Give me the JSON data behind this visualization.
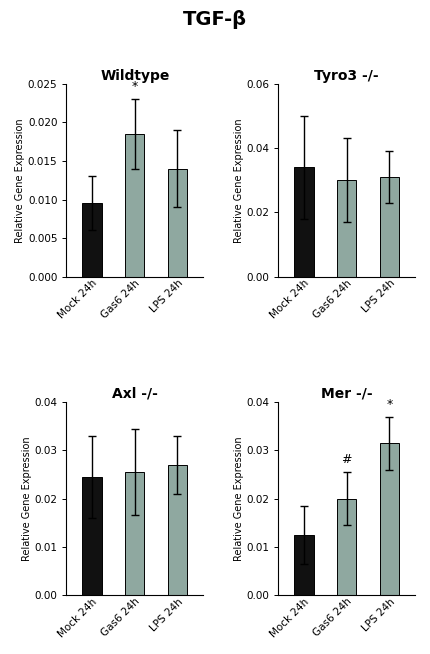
{
  "title": "TGF-β",
  "subplots": [
    {
      "title": "Wildtype",
      "categories": [
        "Mock 24h",
        "Gas6 24h",
        "LPS 24h"
      ],
      "values": [
        0.0095,
        0.0185,
        0.014
      ],
      "errors": [
        0.0035,
        0.0045,
        0.005
      ],
      "bar_colors": [
        "#111111",
        "#8fa8a0",
        "#8fa8a0"
      ],
      "ylim": [
        0,
        0.025
      ],
      "yticks": [
        0.0,
        0.005,
        0.01,
        0.015,
        0.02,
        0.025
      ],
      "yticklabels": [
        "0.000",
        "0.005",
        "0.010",
        "0.015",
        "0.020",
        "0.025"
      ],
      "ylabel": "Relative Gene Expression",
      "significance": [
        null,
        "*",
        null
      ]
    },
    {
      "title": "Tyro3 -/-",
      "categories": [
        "Mock 24h",
        "Gas6 24h",
        "LPS 24h"
      ],
      "values": [
        0.034,
        0.03,
        0.031
      ],
      "errors": [
        0.016,
        0.013,
        0.008
      ],
      "bar_colors": [
        "#111111",
        "#8fa8a0",
        "#8fa8a0"
      ],
      "ylim": [
        0,
        0.06
      ],
      "yticks": [
        0.0,
        0.02,
        0.04,
        0.06
      ],
      "yticklabels": [
        "0.00",
        "0.02",
        "0.04",
        "0.06"
      ],
      "ylabel": "Relative Gene Expression",
      "significance": [
        null,
        null,
        null
      ]
    },
    {
      "title": "Axl -/-",
      "categories": [
        "Mock 24h",
        "Gas6 24h",
        "LPS 24h"
      ],
      "values": [
        0.0245,
        0.0255,
        0.027
      ],
      "errors": [
        0.0085,
        0.009,
        0.006
      ],
      "bar_colors": [
        "#111111",
        "#8fa8a0",
        "#8fa8a0"
      ],
      "ylim": [
        0,
        0.04
      ],
      "yticks": [
        0.0,
        0.01,
        0.02,
        0.03,
        0.04
      ],
      "yticklabels": [
        "0.00",
        "0.01",
        "0.02",
        "0.03",
        "0.04"
      ],
      "ylabel": "Relative Gene Expression",
      "significance": [
        null,
        null,
        null
      ]
    },
    {
      "title": "Mer -/-",
      "categories": [
        "Mock 24h",
        "Gas6 24h",
        "LPS 24h"
      ],
      "values": [
        0.0125,
        0.02,
        0.0315
      ],
      "errors": [
        0.006,
        0.0055,
        0.0055
      ],
      "bar_colors": [
        "#111111",
        "#8fa8a0",
        "#8fa8a0"
      ],
      "ylim": [
        0,
        0.04
      ],
      "yticks": [
        0.0,
        0.01,
        0.02,
        0.03,
        0.04
      ],
      "yticklabels": [
        "0.00",
        "0.01",
        "0.02",
        "0.03",
        "0.04"
      ],
      "ylabel": "Relative Gene Expression",
      "significance": [
        null,
        "#",
        "*"
      ]
    }
  ],
  "background_color": "#ffffff",
  "title_fontsize": 14,
  "subplot_title_fontsize": 10,
  "axis_label_fontsize": 7,
  "tick_fontsize": 7.5,
  "bar_width": 0.45
}
